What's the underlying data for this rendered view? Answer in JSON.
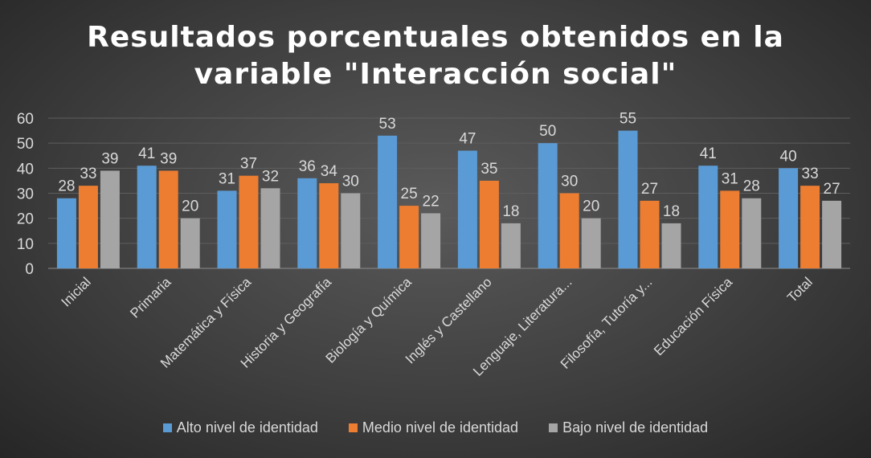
{
  "chart_data": {
    "type": "bar",
    "title": "Resultados porcentuales obtenidos en la variable \"Interacción social\"",
    "title_lines": [
      "Resultados porcentuales obtenidos en la",
      "variable \"Interacción social\""
    ],
    "categories": [
      "Inicial",
      "Primaria",
      "Matemática y Física",
      "Historia y Geografía",
      "Biología y Química",
      "Inglés y Castellano",
      "Lenguaje, Literatura...",
      "Filosofía, Tutoría y...",
      "Educación Física",
      "Total"
    ],
    "series": [
      {
        "name": "Alto nivel  de identidad",
        "color": "#5b9bd5",
        "values": [
          28,
          41,
          31,
          36,
          53,
          47,
          50,
          55,
          41,
          40
        ]
      },
      {
        "name": "Medio nivel  de identidad",
        "color": "#ed7d31",
        "values": [
          33,
          39,
          37,
          34,
          25,
          35,
          30,
          27,
          31,
          33
        ]
      },
      {
        "name": "Bajo nivel  de identidad",
        "color": "#a5a5a5",
        "values": [
          39,
          20,
          32,
          30,
          22,
          18,
          20,
          18,
          28,
          27
        ]
      }
    ],
    "ylim": [
      0,
      60
    ],
    "yticks": [
      0,
      10,
      20,
      30,
      40,
      50,
      60
    ],
    "xlabel": "",
    "ylabel": "",
    "grid": true,
    "legend_position": "bottom"
  }
}
